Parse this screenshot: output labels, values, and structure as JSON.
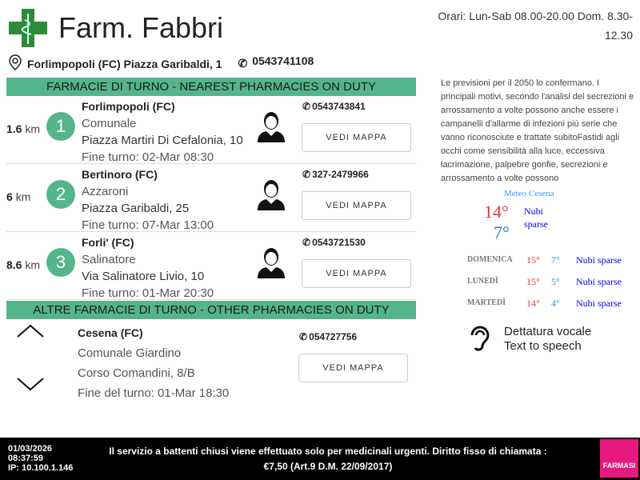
{
  "header": {
    "title": "Farm. Fabbri",
    "hours": "Orari: Lun-Sab 08.00-20.00 Dom. 8.30-12.30",
    "address": "Forlimpopoli (FC) Piazza Garibaldi, 1",
    "phone": "0543741108"
  },
  "nearest": {
    "heading": "FARMACIE DI TURNO - NEAREST PHARMACIES ON DUTY",
    "items": [
      {
        "distance": "1.6",
        "unit": "km",
        "rank": "1",
        "city": "Forlimpopoli (FC)",
        "name": "Comunale",
        "street": "Piazza Martiri Di Cefalonia, 10",
        "end": "Fine turno: 02-Mar 08:30",
        "phone": "0543743841",
        "button": "VEDI MAPPA"
      },
      {
        "distance": "6",
        "unit": "km",
        "rank": "2",
        "city": "Bertinoro (FC)",
        "name": "Azzaroni",
        "street": "Piazza Garibaldi, 25",
        "end": "Fine turno: 07-Mar 13:00",
        "phone": "327-2479966",
        "button": "VEDI MAPPA"
      },
      {
        "distance": "8.6",
        "unit": "km",
        "rank": "3",
        "city": "Forli' (FC)",
        "name": "Salinatore",
        "street": "Via Salinatore Livio, 10",
        "end": "Fine turno: 01-Mar 20:30",
        "phone": "0543721530",
        "button": "VEDI MAPPA"
      }
    ]
  },
  "other": {
    "heading": "ALTRE FARMACIE DI TURNO - OTHER PHARMACIES ON DUTY",
    "city": "Cesena (FC)",
    "name": "Comunale Giardino",
    "street": "Corso Comandini, 8/B",
    "end": "Fine del turno: 01-Mar 18:30",
    "phone": "054727756",
    "button": "VEDI MAPPA"
  },
  "news": "Le previsioni per il 2050 lo confermano. I principali motivi, secondo l'analisi del secrezioni e arrossamento a volte possono anche essere i campanelli d'allarme di infezioni più serie che vanno riconosciute e trattate subitoFastidi agli occhi come sensibilità alla luce, eccessiva lacrimazione, palpebre gonfie, secrezioni e arrossamento a volte possono",
  "weather": {
    "title": "Meteo Cesena",
    "today_max": "14°",
    "today_min": "7°",
    "today_desc": "Nubi sparse",
    "forecast": [
      {
        "day": "DOMENICA",
        "max": "15°",
        "min": "7°",
        "desc": "Nubi sparse"
      },
      {
        "day": "LUNEDÌ",
        "max": "15°",
        "min": "5°",
        "desc": "Nubi sparse"
      },
      {
        "day": "MARTEDÌ",
        "max": "14°",
        "min": "4°",
        "desc": "Nubi sparse"
      }
    ]
  },
  "tts": {
    "line1": "Dettatura vocale",
    "line2": "Text to speech"
  },
  "footer": {
    "date": "01/03/2026",
    "time": "08:37:59",
    "ip": "IP: 10.100.1.146",
    "notice1": "Il servizio a battenti chiusi viene effettuato solo per medicinali urgenti. Diritto fisso di chiamata :",
    "notice2": "€7,50 (Art.9 D.M. 22/09/2017)",
    "logo": "FARMASI"
  },
  "colors": {
    "accent": "#55b58a",
    "logo_green": "#2e8b3a",
    "logo_pink": "#e6197e"
  }
}
